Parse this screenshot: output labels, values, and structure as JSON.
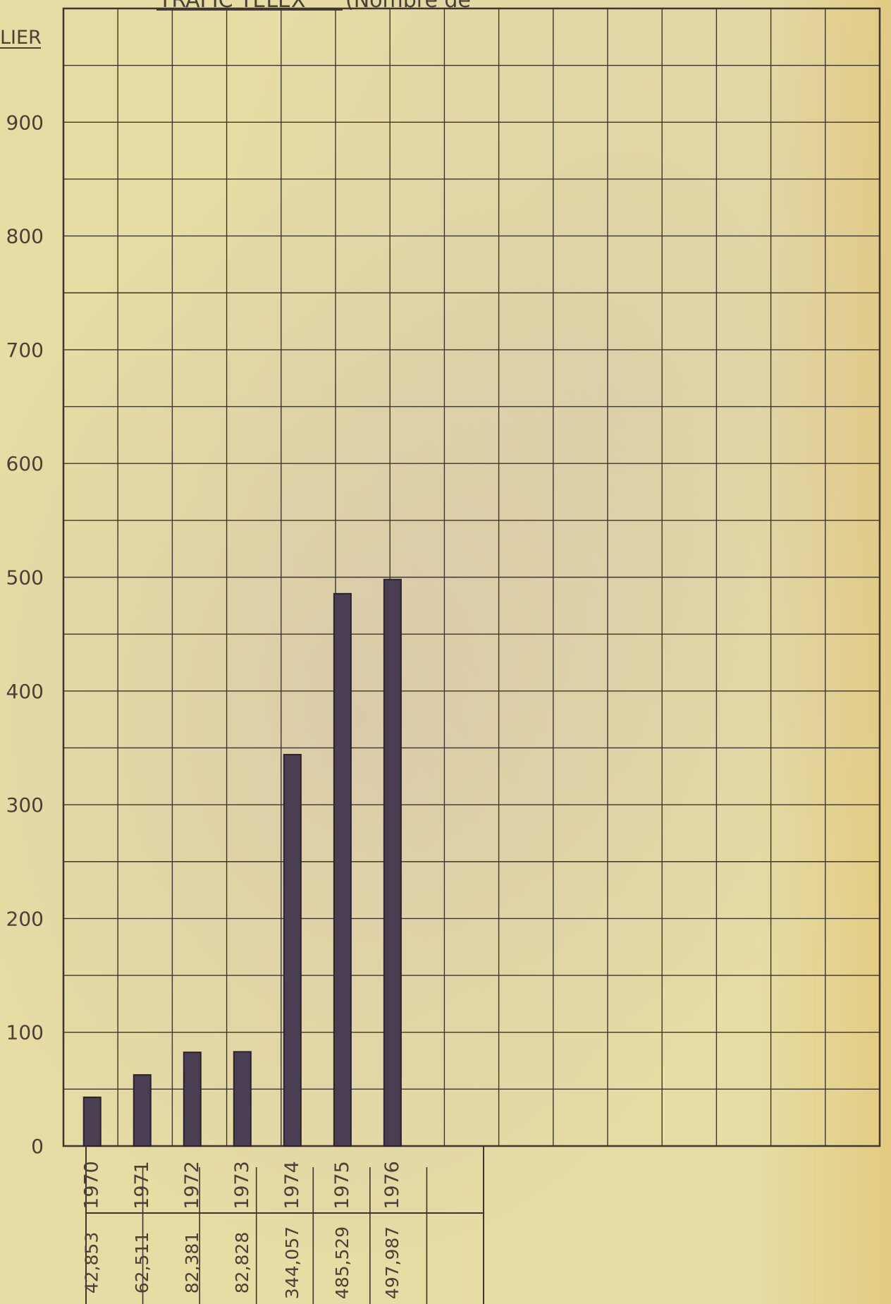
{
  "header": {
    "title": "TRAFIC TELEX",
    "title_rest": "(Nombre de",
    "unit_label": "LIER"
  },
  "chart_data": {
    "type": "bar",
    "title": "TRAFIC TELEX",
    "categories": [
      "1970",
      "1971",
      "1972",
      "1973",
      "1974",
      "1975",
      "1976"
    ],
    "values": [
      42.853,
      62.511,
      82.381,
      82.828,
      344.057,
      485.529,
      497.987
    ],
    "value_labels": [
      "42,853",
      "62,511",
      "82,381",
      "82,828",
      "344,057",
      "485,529",
      "497,987"
    ],
    "ylim": [
      0,
      1000
    ],
    "yticks": [
      0,
      100,
      200,
      300,
      400,
      500,
      600,
      700,
      800,
      900
    ],
    "grid": true,
    "bar_color": "#4a3f52",
    "line_color": "#3c3530",
    "text_color": "#4a4038"
  }
}
